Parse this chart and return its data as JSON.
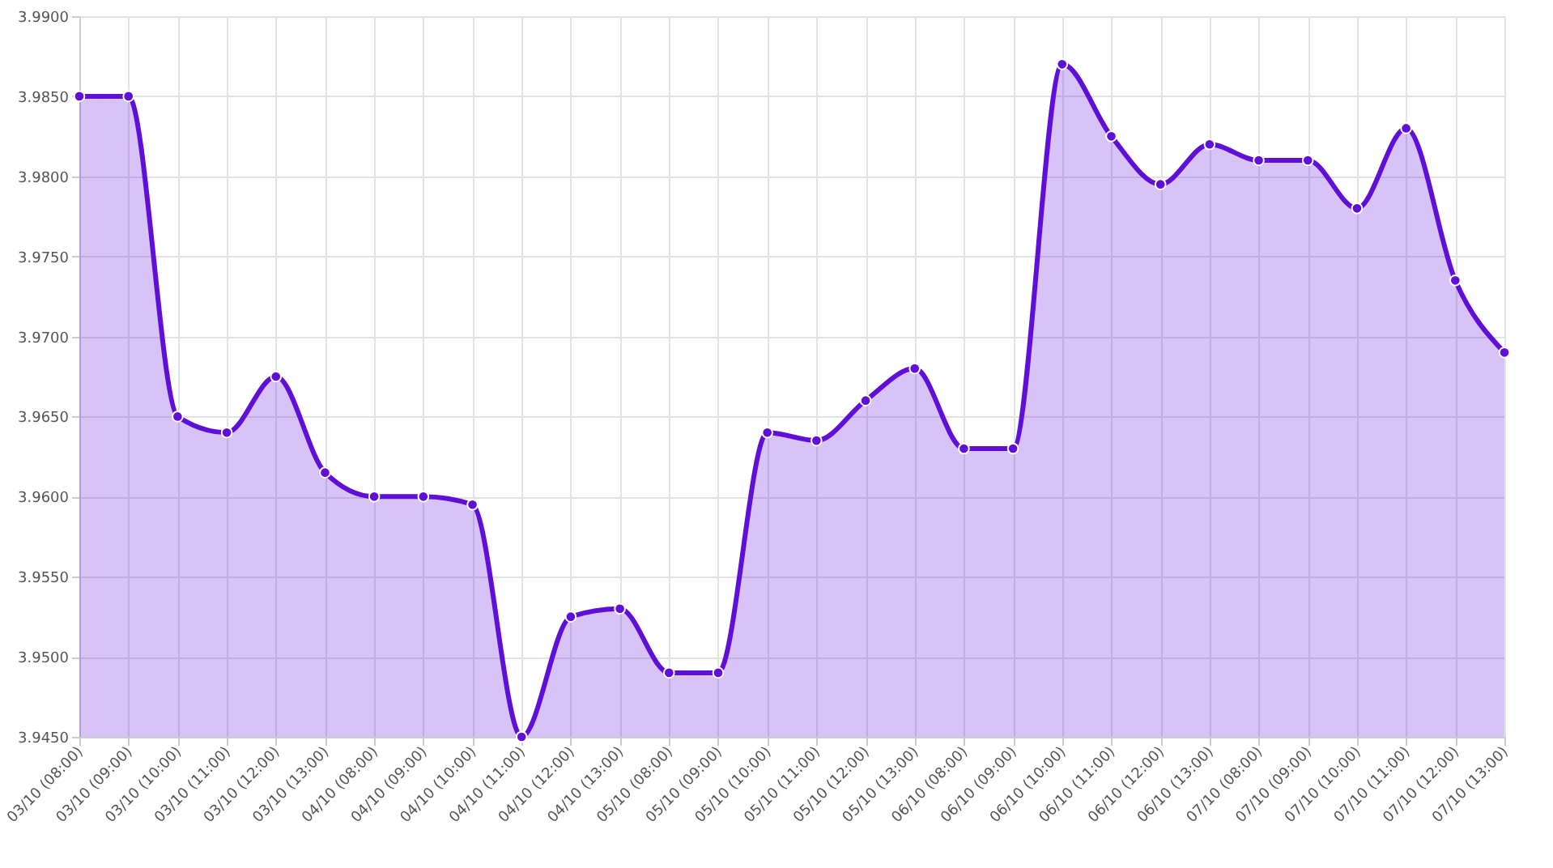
{
  "chart_data": {
    "type": "area",
    "categories": [
      "03/10 (08:00)",
      "03/10 (09:00)",
      "03/10 (10:00)",
      "03/10 (11:00)",
      "03/10 (12:00)",
      "03/10 (13:00)",
      "04/10 (08:00)",
      "04/10 (09:00)",
      "04/10 (10:00)",
      "04/10 (11:00)",
      "04/10 (12:00)",
      "04/10 (13:00)",
      "05/10 (08:00)",
      "05/10 (09:00)",
      "05/10 (10:00)",
      "05/10 (11:00)",
      "05/10 (12:00)",
      "05/10 (13:00)",
      "06/10 (08:00)",
      "06/10 (09:00)",
      "06/10 (10:00)",
      "06/10 (11:00)",
      "06/10 (12:00)",
      "06/10 (13:00)",
      "07/10 (08:00)",
      "07/10 (09:00)",
      "07/10 (10:00)",
      "07/10 (11:00)",
      "07/10 (12:00)",
      "07/10 (13:00)"
    ],
    "series": [
      {
        "color": "#5f0fd8",
        "values": [
          3.985,
          3.985,
          3.965,
          3.964,
          3.9675,
          3.9615,
          3.96,
          3.96,
          3.9595,
          3.945,
          3.9525,
          3.953,
          3.949,
          3.949,
          3.964,
          3.9635,
          3.966,
          3.968,
          3.963,
          3.963,
          3.987,
          3.9825,
          3.9795,
          3.982,
          3.981,
          3.981,
          3.978,
          3.983,
          3.9735,
          3.969
        ]
      }
    ],
    "ylim": [
      3.945,
      3.99
    ],
    "yticks": [
      {
        "value": 3.945,
        "label": "3.9450"
      },
      {
        "value": 3.95,
        "label": "3.9500"
      },
      {
        "value": 3.955,
        "label": "3.9550"
      },
      {
        "value": 3.96,
        "label": "3.9600"
      },
      {
        "value": 3.965,
        "label": "3.9650"
      },
      {
        "value": 3.97,
        "label": "3.9700"
      },
      {
        "value": 3.975,
        "label": "3.9750"
      },
      {
        "value": 3.98,
        "label": "3.9800"
      },
      {
        "value": 3.985,
        "label": "3.9850"
      },
      {
        "value": 3.99,
        "label": "3.9900"
      }
    ],
    "grid": true,
    "marker": "circle"
  }
}
